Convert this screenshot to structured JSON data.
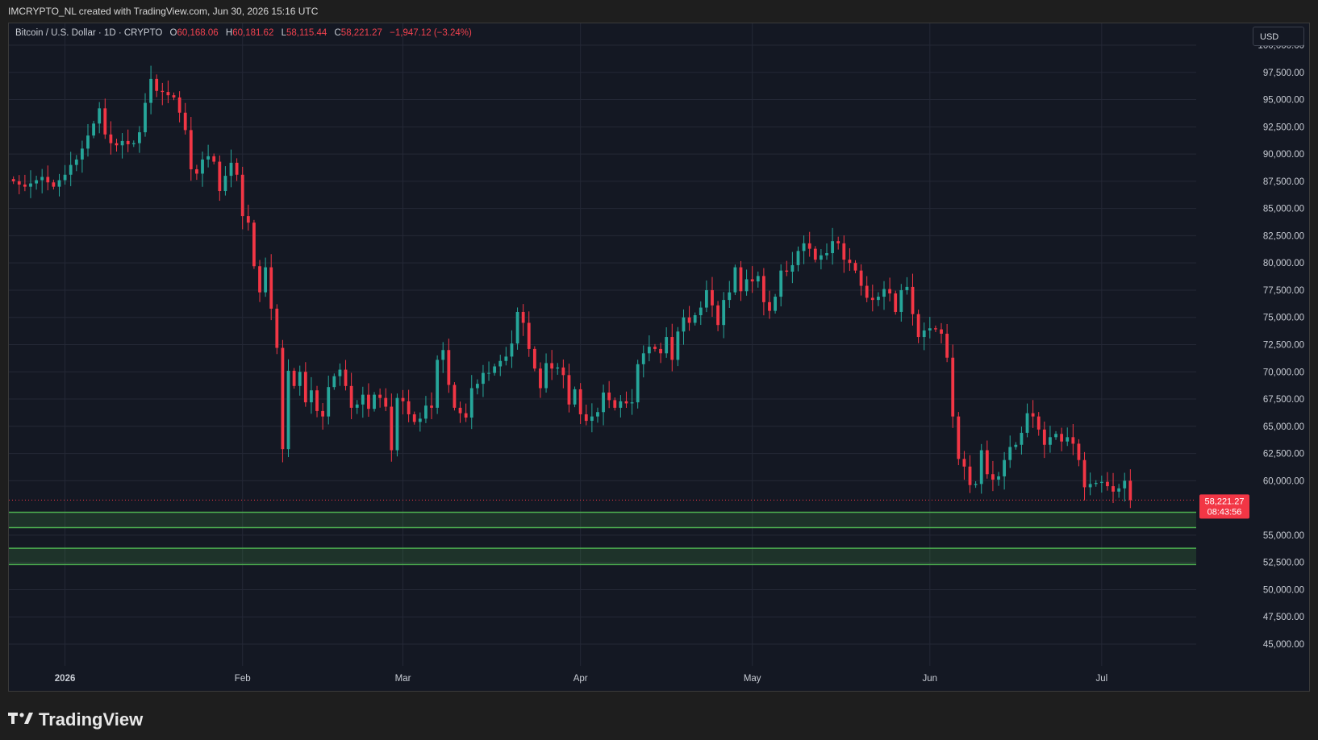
{
  "header": {
    "credit": "IMCRYPTO_NL created with TradingView.com, Jun 30, 2026 15:16 UTC"
  },
  "legend": {
    "symbol": "Bitcoin / U.S. Dollar · 1D · CRYPTO",
    "o_label": "O",
    "o_value": "60,168.06",
    "h_label": "H",
    "h_value": "60,181.62",
    "l_label": "L",
    "l_value": "58,115.44",
    "c_label": "C",
    "c_value": "58,221.27",
    "change": "−1,947.12 (−3.24%)"
  },
  "currency_button": "USD",
  "last_price": {
    "value": "58,221.27",
    "countdown": "08:43:56"
  },
  "footer": {
    "brand": "TradingView"
  },
  "colors": {
    "up": "#26a69a",
    "down": "#f23645",
    "zone_border": "#4caf50",
    "background": "#141823",
    "grid": "#242836",
    "axis_text": "#c8ccd4"
  },
  "chart_data": {
    "type": "candlestick",
    "timeframe": "1D",
    "ylim": [
      43000,
      102000
    ],
    "y_ticks": [
      {
        "v": 100000,
        "label": "100,000.00"
      },
      {
        "v": 97500,
        "label": "97,500.00"
      },
      {
        "v": 95000,
        "label": "95,000.00"
      },
      {
        "v": 92500,
        "label": "92,500.00"
      },
      {
        "v": 90000,
        "label": "90,000.00"
      },
      {
        "v": 87500,
        "label": "87,500.00"
      },
      {
        "v": 85000,
        "label": "85,000.00"
      },
      {
        "v": 82500,
        "label": "82,500.00"
      },
      {
        "v": 80000,
        "label": "80,000.00"
      },
      {
        "v": 77500,
        "label": "77,500.00"
      },
      {
        "v": 75000,
        "label": "75,000.00"
      },
      {
        "v": 72500,
        "label": "72,500.00"
      },
      {
        "v": 70000,
        "label": "70,000.00"
      },
      {
        "v": 67500,
        "label": "67,500.00"
      },
      {
        "v": 65000,
        "label": "65,000.00"
      },
      {
        "v": 62500,
        "label": "62,500.00"
      },
      {
        "v": 60000,
        "label": "60,000.00"
      },
      {
        "v": 55000,
        "label": "55,000.00"
      },
      {
        "v": 52500,
        "label": "52,500.00"
      },
      {
        "v": 50000,
        "label": "50,000.00"
      },
      {
        "v": 47500,
        "label": "47,500.00"
      },
      {
        "v": 45000,
        "label": "45,000.00"
      }
    ],
    "x_ticks": [
      {
        "day": 9,
        "label": "2026"
      },
      {
        "day": 40,
        "label": "Feb"
      },
      {
        "day": 68,
        "label": "Mar"
      },
      {
        "day": 99,
        "label": "Apr"
      },
      {
        "day": 129,
        "label": "May"
      },
      {
        "day": 160,
        "label": "Jun"
      },
      {
        "day": 190,
        "label": "Jul"
      }
    ],
    "x_range_days": [
      -0.8,
      206.5
    ],
    "zones": [
      {
        "low": 55700,
        "high": 57100
      },
      {
        "low": 52300,
        "high": 53800
      }
    ],
    "last_price": 58221.27,
    "closes": [
      87500,
      87200,
      87000,
      87300,
      87600,
      87900,
      87400,
      87000,
      87600,
      88100,
      89000,
      89500,
      90500,
      91700,
      92800,
      94200,
      91800,
      91000,
      90800,
      91200,
      90900,
      91000,
      92000,
      94700,
      96900,
      95800,
      95700,
      95400,
      95200,
      93800,
      92200,
      88600,
      88200,
      89500,
      89800,
      89300,
      86600,
      88000,
      89200,
      88100,
      84300,
      83700,
      79700,
      77300,
      79600,
      75800,
      72200,
      62900,
      70100,
      68700,
      70000,
      67200,
      68300,
      66400,
      65900,
      68600,
      69600,
      70200,
      68700,
      66700,
      67000,
      67900,
      66600,
      67900,
      67600,
      66800,
      62800,
      67600,
      67300,
      66100,
      65400,
      65700,
      66900,
      66700,
      71100,
      72000,
      68800,
      66700,
      66200,
      65800,
      68500,
      68900,
      69900,
      69900,
      70500,
      71000,
      71400,
      72600,
      75500,
      74500,
      72100,
      70300,
      68500,
      70800,
      70300,
      70400,
      69700,
      67000,
      68400,
      66100,
      65500,
      65900,
      66300,
      68100,
      67400,
      66700,
      67300,
      67100,
      67200,
      70700,
      71700,
      72300,
      72100,
      71700,
      73200,
      71100,
      73700,
      75000,
      74500,
      75200,
      75900,
      77500,
      76100,
      74300,
      76600,
      77300,
      79600,
      77400,
      78500,
      78300,
      78800,
      76400,
      75600,
      76900,
      79300,
      79200,
      79800,
      81100,
      81800,
      81300,
      80300,
      80700,
      80900,
      82000,
      81800,
      80300,
      80000,
      79300,
      77900,
      76800,
      76600,
      76900,
      77600,
      77200,
      75500,
      77500,
      77800,
      75300,
      73200,
      73800,
      74000,
      73900,
      73500,
      71300,
      65900,
      62000,
      61300,
      59600,
      59700,
      62800,
      60600,
      60100,
      60400,
      61900,
      63100,
      63300,
      64400,
      66200,
      65900,
      64700,
      63300,
      64000,
      64300,
      63600,
      64000,
      63400,
      61900,
      59400,
      59700,
      59800,
      59900,
      59500,
      59000,
      59300,
      60000,
      58221.27
    ]
  }
}
